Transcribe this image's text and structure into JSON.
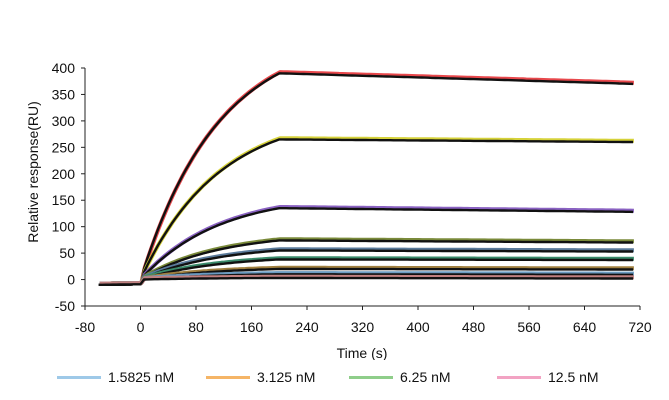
{
  "chart_data": {
    "type": "line",
    "title": "",
    "xlabel": "Time (s)",
    "ylabel": "Relative response(RU)",
    "xlim": [
      -80,
      720
    ],
    "ylim": [
      -50,
      400
    ],
    "xticks": [
      -80,
      0,
      80,
      160,
      240,
      320,
      400,
      480,
      560,
      640,
      720
    ],
    "yticks": [
      -50,
      0,
      50,
      100,
      150,
      200,
      250,
      300,
      350,
      400
    ],
    "grid": false,
    "legend_position": "bottom",
    "injection_end_s": 200,
    "legend": [
      {
        "label": "1.5825 nM",
        "color": "#9ec9e8"
      },
      {
        "label": "3.125 nM",
        "color": "#f5b567"
      },
      {
        "label": "6.25 nM",
        "color": "#8fce8a"
      },
      {
        "label": "12.5 nM",
        "color": "#f2a3c3"
      }
    ],
    "series": [
      {
        "plateau": 390,
        "end": 370,
        "color": "#e8484c"
      },
      {
        "plateau": 265,
        "end": 260,
        "color": "#d6d23a"
      },
      {
        "plateau": 135,
        "end": 128,
        "color": "#8a62c2"
      },
      {
        "plateau": 74,
        "end": 70,
        "color": "#7a8a3a"
      },
      {
        "plateau": 55,
        "end": 53,
        "color": "#5a7a9a"
      },
      {
        "plateau": 38,
        "end": 37,
        "color": "#3a8a6a"
      },
      {
        "plateau": 20,
        "end": 19,
        "color": "#a08040"
      },
      {
        "plateau": 10,
        "end": 9,
        "color": "#6a9ac0"
      },
      {
        "plateau": 3,
        "end": 2,
        "color": "#c08080"
      }
    ],
    "baseline": -10
  }
}
